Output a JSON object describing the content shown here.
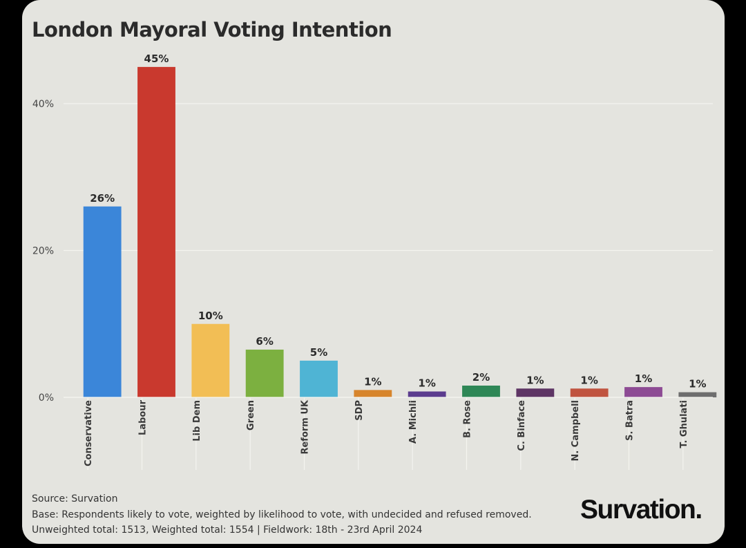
{
  "chart_data": {
    "type": "bar",
    "title": "London Mayoral Voting Intention",
    "categories": [
      "Conservative",
      "Labour",
      "Lib Dem",
      "Green",
      "Reform UK",
      "SDP",
      "A. Michli",
      "B. Rose",
      "C. Binface",
      "N. Campbell",
      "S. Batra",
      "T. Ghulati"
    ],
    "values": [
      26,
      45,
      10,
      6.5,
      5,
      1,
      0.8,
      1.6,
      1.2,
      1.2,
      1.4,
      0.7
    ],
    "data_labels": [
      "26%",
      "45%",
      "10%",
      "6%",
      "5%",
      "1%",
      "1%",
      "2%",
      "1%",
      "1%",
      "1%",
      "1%"
    ],
    "colors": [
      "#3b86d9",
      "#c9392e",
      "#f2be55",
      "#7cb040",
      "#4fb4d4",
      "#d7852c",
      "#5b3c8e",
      "#2e8756",
      "#5e3565",
      "#c05440",
      "#8d4b94",
      "#6e6e6e"
    ],
    "ylim": [
      0,
      48
    ],
    "yticks": [
      0,
      20,
      40
    ],
    "ytick_labels": [
      "0%",
      "20%",
      "40%"
    ],
    "grid": true,
    "legend": "none"
  },
  "footer": {
    "source": "Source: Survation",
    "base": "Base: Respondents likely to vote, weighted by likelihood to vote, with undecided and refused removed.",
    "totals": "Unweighted total: 1513, Weighted total: 1554 | Fieldwork: 18th - 23rd April 2024"
  },
  "logo_text": "Survation."
}
